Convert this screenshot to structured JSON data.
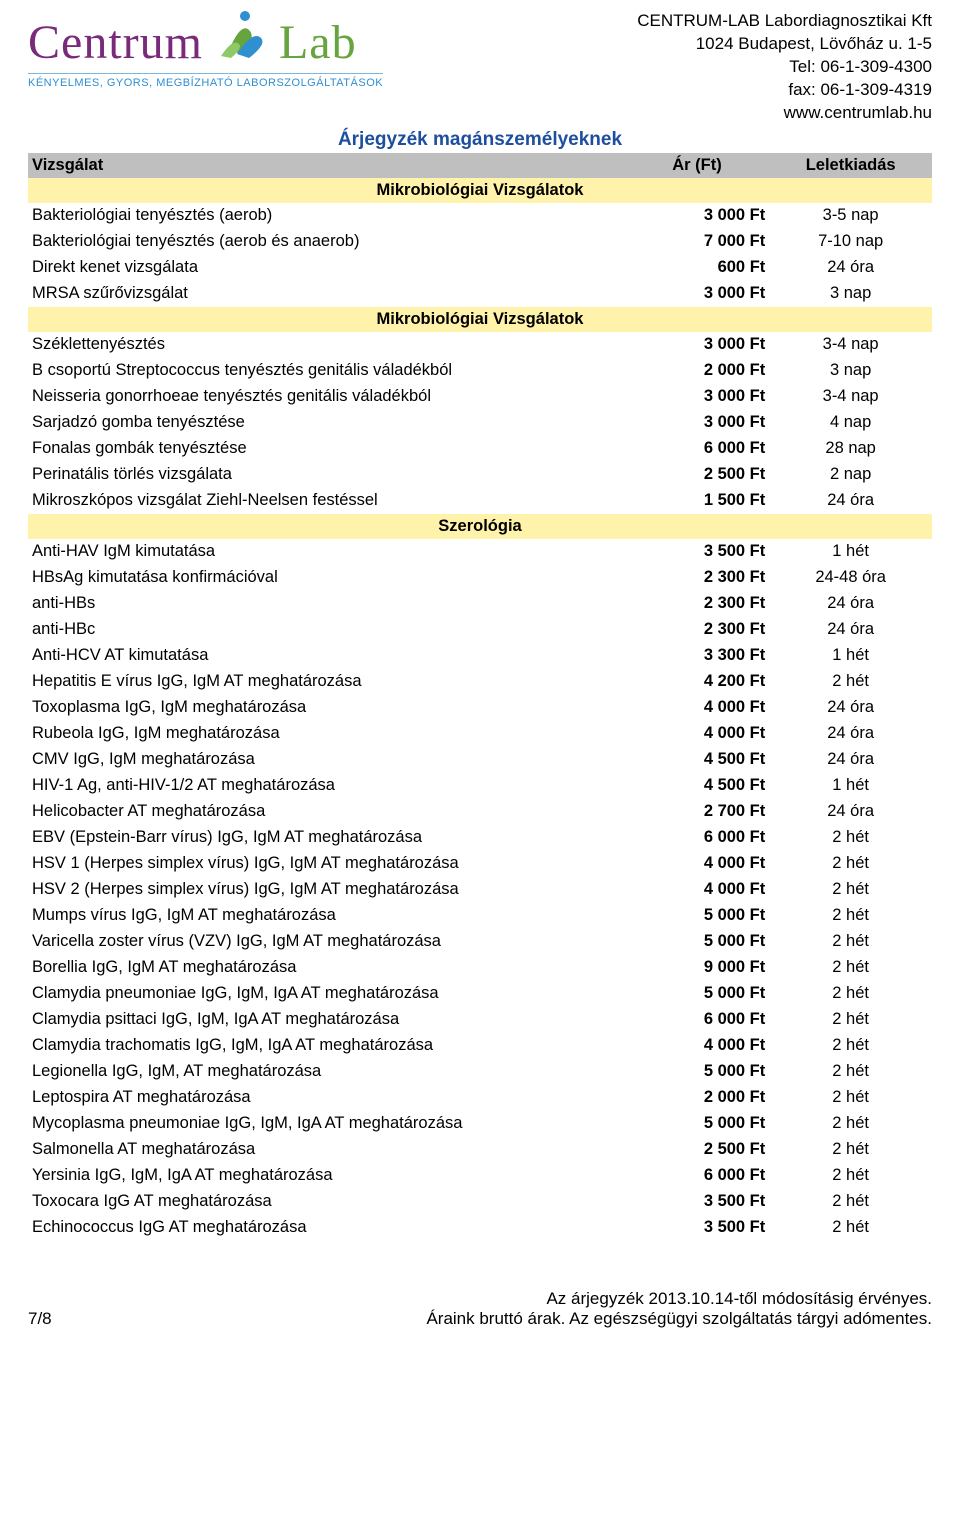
{
  "company": {
    "logo_name": "Centrum",
    "logo_lab": "Lab",
    "tagline": "KÉNYELMES, GYORS, MEGBÍZHATÓ LABORSZOLGÁLTATÁSOK",
    "name": "CENTRUM-LAB Labordiagnosztikai Kft",
    "address": "1024 Budapest, Lövőház u. 1-5",
    "tel": "Tel: 06-1-309-4300",
    "fax": "fax: 06-1-309-4319",
    "web": "www.centrumlab.hu"
  },
  "doc_title": "Árjegyzék magánszemélyeknek",
  "columns": {
    "name": "Vizsgálat",
    "price": "Ár (Ft)",
    "turnaround": "Leletkiadás"
  },
  "colors": {
    "header_bg": "#bfbfbf",
    "section_bg": "#fff2aa",
    "title_color": "#1e4ea0",
    "logo_purple": "#7a2a7a",
    "logo_green": "#67a33e",
    "tagline_color": "#2f8fcf"
  },
  "sections": [
    {
      "title": "Mikrobiológiai Vizsgálatok",
      "rows": [
        {
          "name": "Bakteriológiai tenyésztés (aerob)",
          "price": "3 000 Ft",
          "turnaround": "3-5 nap"
        },
        {
          "name": "Bakteriológiai tenyésztés (aerob és anaerob)",
          "price": "7 000 Ft",
          "turnaround": "7-10 nap"
        },
        {
          "name": "Direkt kenet vizsgálata",
          "price": "600 Ft",
          "turnaround": "24 óra"
        },
        {
          "name": "MRSA szűrővizsgálat",
          "price": "3 000 Ft",
          "turnaround": "3  nap"
        }
      ]
    },
    {
      "title": "Mikrobiológiai Vizsgálatok",
      "rows": [
        {
          "name": "Széklettenyésztés",
          "price": "3 000 Ft",
          "turnaround": "3-4 nap"
        },
        {
          "name": "B csoportú Streptococcus tenyésztés genitális váladékból",
          "price": "2 000 Ft",
          "turnaround": "3 nap"
        },
        {
          "name": "Neisseria gonorrhoeae tenyésztés genitális váladékból",
          "price": "3 000 Ft",
          "turnaround": "3-4 nap"
        },
        {
          "name": "Sarjadzó gomba tenyésztése",
          "price": "3 000 Ft",
          "turnaround": "4 nap"
        },
        {
          "name": "Fonalas gombák tenyésztése",
          "price": "6 000 Ft",
          "turnaround": "28 nap"
        },
        {
          "name": "Perinatális törlés vizsgálata",
          "price": "2 500 Ft",
          "turnaround": "2 nap"
        },
        {
          "name": "Mikroszkópos vizsgálat Ziehl-Neelsen festéssel",
          "price": "1 500 Ft",
          "turnaround": "24 óra"
        }
      ]
    },
    {
      "title": "Szerológia",
      "rows": [
        {
          "name": "Anti-HAV IgM kimutatása",
          "price": "3 500 Ft",
          "turnaround": "1 hét"
        },
        {
          "name": "HBsAg  kimutatása konfirmációval",
          "price": "2 300 Ft",
          "turnaround": "24-48 óra"
        },
        {
          "name": "anti-HBs",
          "price": "2 300 Ft",
          "turnaround": "24 óra"
        },
        {
          "name": "anti-HBc",
          "price": "2 300 Ft",
          "turnaround": "24 óra"
        },
        {
          "name": "Anti-HCV AT kimutatása",
          "price": "3 300 Ft",
          "turnaround": "1 hét"
        },
        {
          "name": "Hepatitis E vírus IgG, IgM  AT meghatározása",
          "price": "4 200 Ft",
          "turnaround": "2 hét"
        },
        {
          "name": "Toxoplasma IgG, IgM meghatározása",
          "price": "4 000 Ft",
          "turnaround": "24 óra"
        },
        {
          "name": "Rubeola IgG, IgM meghatározása",
          "price": "4 000 Ft",
          "turnaround": "24 óra"
        },
        {
          "name": "CMV IgG, IgM meghatározása",
          "price": "4 500 Ft",
          "turnaround": "24 óra"
        },
        {
          "name": "HIV-1 Ag, anti-HIV-1/2 AT meghatározása",
          "price": "4 500 Ft",
          "turnaround": "1 hét"
        },
        {
          "name": "Helicobacter AT meghatározása",
          "price": "2 700 Ft",
          "turnaround": "24 óra"
        },
        {
          "name": "EBV (Epstein-Barr vírus) IgG, IgM AT meghatározása",
          "price": "6 000 Ft",
          "turnaround": "2 hét"
        },
        {
          "name": "HSV 1 (Herpes simplex vírus) IgG, IgM AT meghatározása",
          "price": "4 000 Ft",
          "turnaround": "2 hét"
        },
        {
          "name": "HSV 2 (Herpes simplex vírus) IgG, IgM AT meghatározása",
          "price": "4 000 Ft",
          "turnaround": "2 hét"
        },
        {
          "name": "Mumps vírus IgG, IgM  AT meghatározása",
          "price": "5 000 Ft",
          "turnaround": "2 hét"
        },
        {
          "name": "Varicella zoster vírus (VZV) IgG, IgM  AT meghatározása",
          "price": "5 000 Ft",
          "turnaround": "2 hét"
        },
        {
          "name": "Borellia IgG, IgM  AT meghatározása",
          "price": "9 000 Ft",
          "turnaround": "2 hét"
        },
        {
          "name": "Clamydia pneumoniae IgG, IgM, IgA  AT meghatározása",
          "price": "5 000 Ft",
          "turnaround": "2 hét"
        },
        {
          "name": "Clamydia psittaci IgG, IgM, IgA  AT meghatározása",
          "price": "6 000 Ft",
          "turnaround": "2 hét"
        },
        {
          "name": "Clamydia trachomatis IgG, IgM, IgA  AT meghatározása",
          "price": "4 000 Ft",
          "turnaround": "2 hét"
        },
        {
          "name": "Legionella IgG, IgM,  AT meghatározása",
          "price": "5 000 Ft",
          "turnaround": "2 hét"
        },
        {
          "name": "Leptospira AT meghatározása",
          "price": "2 000 Ft",
          "turnaround": "2 hét"
        },
        {
          "name": "Mycoplasma pneumoniae IgG, IgM, IgA  AT meghatározása",
          "price": "5 000 Ft",
          "turnaround": "2 hét"
        },
        {
          "name": "Salmonella AT meghatározása",
          "price": "2 500 Ft",
          "turnaround": "2 hét"
        },
        {
          "name": "Yersinia IgG, IgM, IgA  AT meghatározása",
          "price": "6 000 Ft",
          "turnaround": "2 hét"
        },
        {
          "name": "Toxocara IgG AT meghatározása",
          "price": "3 500 Ft",
          "turnaround": "2 hét"
        },
        {
          "name": "Echinococcus IgG AT meghatározása",
          "price": "3 500 Ft",
          "turnaround": "2 hét"
        }
      ]
    }
  ],
  "footer": {
    "page": "7/8",
    "validity": "Az árjegyzék 2013.10.14-től módosításig érvényes.",
    "note": "Áraink bruttó árak. Az egészségügyi szolgáltatás tárgyi adómentes."
  }
}
